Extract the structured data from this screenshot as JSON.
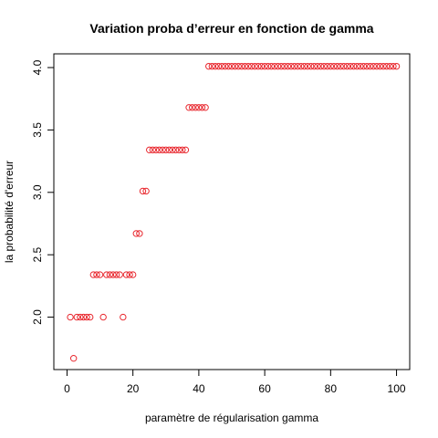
{
  "chart_data": {
    "type": "scatter",
    "title": "Variation proba d’erreur en fonction de gamma",
    "xlabel": "paramètre de régularisation gamma",
    "ylabel": "la probabilité d'erreur",
    "xlim": [
      -4,
      104
    ],
    "ylim": [
      1.58,
      4.11
    ],
    "xticks": [
      "0",
      "20",
      "40",
      "60",
      "80",
      "100"
    ],
    "yticks": [
      "2.0",
      "2.5",
      "3.0",
      "3.5",
      "4.0"
    ],
    "marker_color": "#e8262d",
    "marker": "open-circle",
    "x": [
      1,
      2,
      3,
      4,
      5,
      6,
      7,
      8,
      9,
      10,
      11,
      12,
      13,
      14,
      15,
      16,
      17,
      18,
      19,
      20,
      21,
      22,
      23,
      24,
      25,
      26,
      27,
      28,
      29,
      30,
      31,
      32,
      33,
      34,
      35,
      36,
      37,
      38,
      39,
      40,
      41,
      42,
      43,
      44,
      45,
      46,
      47,
      48,
      49,
      50,
      51,
      52,
      53,
      54,
      55,
      56,
      57,
      58,
      59,
      60,
      61,
      62,
      63,
      64,
      65,
      66,
      67,
      68,
      69,
      70,
      71,
      72,
      73,
      74,
      75,
      76,
      77,
      78,
      79,
      80,
      81,
      82,
      83,
      84,
      85,
      86,
      87,
      88,
      89,
      90,
      91,
      92,
      93,
      94,
      95,
      96,
      97,
      98,
      99,
      100
    ],
    "y": [
      2.0,
      1.67,
      2.0,
      2.0,
      2.0,
      2.0,
      2.0,
      2.34,
      2.34,
      2.34,
      2.0,
      2.34,
      2.34,
      2.34,
      2.34,
      2.34,
      2.0,
      2.34,
      2.34,
      2.34,
      2.67,
      2.67,
      3.01,
      3.01,
      3.34,
      3.34,
      3.34,
      3.34,
      3.34,
      3.34,
      3.34,
      3.34,
      3.34,
      3.34,
      3.34,
      3.34,
      3.68,
      3.68,
      3.68,
      3.68,
      3.68,
      3.68,
      4.01,
      4.01,
      4.01,
      4.01,
      4.01,
      4.01,
      4.01,
      4.01,
      4.01,
      4.01,
      4.01,
      4.01,
      4.01,
      4.01,
      4.01,
      4.01,
      4.01,
      4.01,
      4.01,
      4.01,
      4.01,
      4.01,
      4.01,
      4.01,
      4.01,
      4.01,
      4.01,
      4.01,
      4.01,
      4.01,
      4.01,
      4.01,
      4.01,
      4.01,
      4.01,
      4.01,
      4.01,
      4.01,
      4.01,
      4.01,
      4.01,
      4.01,
      4.01,
      4.01,
      4.01,
      4.01,
      4.01,
      4.01,
      4.01,
      4.01,
      4.01,
      4.01,
      4.01,
      4.01,
      4.01,
      4.01,
      4.01,
      4.01
    ]
  }
}
